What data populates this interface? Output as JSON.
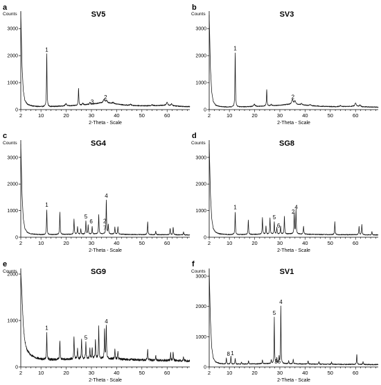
{
  "figure": {
    "panel_count": 6
  },
  "chart_data": [
    {
      "type": "line",
      "letter": "a",
      "title": "SV5",
      "ylabel": "Counts",
      "xlabel": "2-Theta - Scale",
      "xlim": [
        2,
        69
      ],
      "ylim": [
        0,
        3700
      ],
      "x_ticks": [
        2,
        10,
        20,
        30,
        40,
        50,
        60
      ],
      "y_ticks": [
        0,
        1000,
        2000,
        3000
      ],
      "baseline": [
        [
          2,
          3600
        ],
        [
          2.5,
          1600
        ],
        [
          3,
          700
        ],
        [
          3.6,
          350
        ],
        [
          4.5,
          210
        ],
        [
          6,
          150
        ],
        [
          8,
          120
        ],
        [
          10,
          110
        ],
        [
          14,
          110
        ],
        [
          18,
          130
        ],
        [
          22,
          140
        ],
        [
          26,
          170
        ],
        [
          30,
          200
        ],
        [
          33,
          240
        ],
        [
          36,
          260
        ],
        [
          39,
          220
        ],
        [
          43,
          170
        ],
        [
          47,
          150
        ],
        [
          52,
          140
        ],
        [
          56,
          150
        ],
        [
          59,
          160
        ],
        [
          62,
          140
        ],
        [
          66,
          120
        ],
        [
          69,
          110
        ]
      ],
      "peaks": [
        [
          12.3,
          1950,
          0.12
        ],
        [
          19.9,
          80,
          0.35
        ],
        [
          24.9,
          640,
          0.12
        ],
        [
          26.6,
          60,
          0.2
        ],
        [
          29.4,
          70,
          0.2
        ],
        [
          35,
          110,
          0.4
        ],
        [
          36,
          70,
          0.3
        ],
        [
          38.6,
          40,
          0.3
        ],
        [
          45.5,
          40,
          0.3
        ],
        [
          54,
          35,
          0.3
        ],
        [
          60,
          120,
          0.3
        ],
        [
          61.8,
          70,
          0.3
        ]
      ],
      "noise": 18,
      "peak_labels": [
        {
          "text": "1",
          "x": 12.3,
          "y": 2150
        },
        {
          "text": "3",
          "x": 30.3,
          "y": 220
        },
        {
          "text": "2",
          "x": 35.6,
          "y": 380
        }
      ]
    },
    {
      "type": "line",
      "letter": "b",
      "title": "SV3",
      "ylabel": "Counts",
      "xlabel": "2-Theta - Scale",
      "xlim": [
        2,
        69
      ],
      "ylim": [
        0,
        3700
      ],
      "x_ticks": [
        2,
        10,
        20,
        30,
        40,
        50,
        60
      ],
      "y_ticks": [
        0,
        1000,
        2000,
        3000
      ],
      "baseline": [
        [
          2,
          3500
        ],
        [
          2.5,
          1500
        ],
        [
          3,
          650
        ],
        [
          3.6,
          300
        ],
        [
          4.5,
          170
        ],
        [
          6,
          120
        ],
        [
          8,
          100
        ],
        [
          10,
          95
        ],
        [
          14,
          100
        ],
        [
          18,
          110
        ],
        [
          22,
          120
        ],
        [
          26,
          140
        ],
        [
          30,
          160
        ],
        [
          33,
          190
        ],
        [
          36,
          200
        ],
        [
          39,
          170
        ],
        [
          43,
          140
        ],
        [
          47,
          120
        ],
        [
          52,
          110
        ],
        [
          56,
          115
        ],
        [
          59,
          120
        ],
        [
          62,
          105
        ],
        [
          66,
          95
        ],
        [
          69,
          90
        ]
      ],
      "peaks": [
        [
          12.3,
          2000,
          0.12
        ],
        [
          19.9,
          80,
          0.35
        ],
        [
          24.8,
          620,
          0.12
        ],
        [
          26.6,
          60,
          0.2
        ],
        [
          35,
          170,
          0.35
        ],
        [
          36,
          120,
          0.3
        ],
        [
          38.6,
          50,
          0.3
        ],
        [
          42,
          40,
          0.3
        ],
        [
          54,
          35,
          0.3
        ],
        [
          60,
          130,
          0.3
        ],
        [
          61.8,
          70,
          0.3
        ]
      ],
      "noise": 15,
      "peak_labels": [
        {
          "text": "1",
          "x": 12.3,
          "y": 2200
        },
        {
          "text": "2",
          "x": 35.2,
          "y": 400
        }
      ]
    },
    {
      "type": "line",
      "letter": "c",
      "title": "SG4",
      "ylabel": "Counts",
      "xlabel": "2-Theta - Scale",
      "xlim": [
        2,
        69
      ],
      "ylim": [
        0,
        3700
      ],
      "x_ticks": [
        2,
        10,
        20,
        30,
        40,
        50,
        60
      ],
      "y_ticks": [
        0,
        1000,
        2000,
        3000
      ],
      "baseline": [
        [
          2,
          3500
        ],
        [
          2.5,
          1600
        ],
        [
          3,
          700
        ],
        [
          3.6,
          330
        ],
        [
          4.5,
          190
        ],
        [
          6,
          130
        ],
        [
          8,
          110
        ],
        [
          10,
          100
        ],
        [
          14,
          100
        ],
        [
          18,
          105
        ],
        [
          22,
          110
        ],
        [
          26,
          115
        ],
        [
          30,
          120
        ],
        [
          34,
          125
        ],
        [
          38,
          120
        ],
        [
          42,
          110
        ],
        [
          48,
          100
        ],
        [
          54,
          95
        ],
        [
          60,
          95
        ],
        [
          65,
          90
        ],
        [
          69,
          85
        ]
      ],
      "peaks": [
        [
          12.3,
          930,
          0.12
        ],
        [
          17.5,
          830,
          0.12
        ],
        [
          23.1,
          560,
          0.12
        ],
        [
          24.5,
          280,
          0.12
        ],
        [
          25.8,
          190,
          0.12
        ],
        [
          27.8,
          490,
          0.12
        ],
        [
          28.7,
          330,
          0.12
        ],
        [
          30.3,
          280,
          0.12
        ],
        [
          32.9,
          720,
          0.12
        ],
        [
          35.9,
          1280,
          0.12
        ],
        [
          36.7,
          350,
          0.12
        ],
        [
          39.3,
          260,
          0.12
        ],
        [
          40.5,
          280,
          0.12
        ],
        [
          52.3,
          490,
          0.12
        ],
        [
          55.5,
          140,
          0.12
        ],
        [
          61.2,
          240,
          0.12
        ],
        [
          62.4,
          290,
          0.12
        ],
        [
          66.5,
          120,
          0.12
        ]
      ],
      "noise": 15,
      "peak_labels": [
        {
          "text": "1",
          "x": 12.3,
          "y": 1150
        },
        {
          "text": "5",
          "x": 27.8,
          "y": 700
        },
        {
          "text": "6",
          "x": 29.9,
          "y": 520
        },
        {
          "text": "4",
          "x": 35.9,
          "y": 1480
        },
        {
          "text": "2",
          "x": 35.3,
          "y": 530
        },
        {
          "text": "7",
          "x": 35.3,
          "y": 280
        }
      ]
    },
    {
      "type": "line",
      "letter": "d",
      "title": "SG8",
      "ylabel": "Counts",
      "xlabel": "2-Theta - Scale",
      "xlim": [
        2,
        69
      ],
      "ylim": [
        0,
        3700
      ],
      "x_ticks": [
        2,
        10,
        20,
        30,
        40,
        50,
        60
      ],
      "y_ticks": [
        0,
        1000,
        2000,
        3000
      ],
      "baseline": [
        [
          2,
          3500
        ],
        [
          2.5,
          1600
        ],
        [
          3,
          700
        ],
        [
          3.6,
          330
        ],
        [
          4.5,
          190
        ],
        [
          6,
          130
        ],
        [
          8,
          110
        ],
        [
          10,
          100
        ],
        [
          14,
          100
        ],
        [
          18,
          105
        ],
        [
          22,
          110
        ],
        [
          26,
          115
        ],
        [
          30,
          120
        ],
        [
          34,
          125
        ],
        [
          38,
          120
        ],
        [
          42,
          110
        ],
        [
          48,
          100
        ],
        [
          54,
          95
        ],
        [
          60,
          95
        ],
        [
          65,
          90
        ],
        [
          69,
          85
        ]
      ],
      "peaks": [
        [
          12.3,
          850,
          0.12
        ],
        [
          17.5,
          550,
          0.12
        ],
        [
          23.1,
          640,
          0.12
        ],
        [
          24.5,
          300,
          0.12
        ],
        [
          26.1,
          620,
          0.12
        ],
        [
          27.8,
          460,
          0.12
        ],
        [
          28.8,
          250,
          0.12
        ],
        [
          30.3,
          280,
          0.12
        ],
        [
          31.8,
          650,
          0.12
        ],
        [
          35.7,
          780,
          0.12
        ],
        [
          36.4,
          900,
          0.12
        ],
        [
          39.4,
          300,
          0.12
        ],
        [
          51.8,
          480,
          0.12
        ],
        [
          61.4,
          300,
          0.12
        ],
        [
          62.5,
          380,
          0.12
        ],
        [
          66.5,
          120,
          0.12
        ]
      ],
      "noise": 15,
      "peak_labels": [
        {
          "text": "1",
          "x": 12.3,
          "y": 1050
        },
        {
          "text": "5",
          "x": 27.8,
          "y": 680
        },
        {
          "text": "6",
          "x": 29.5,
          "y": 360
        },
        {
          "text": "2",
          "x": 35.3,
          "y": 880
        },
        {
          "text": "4",
          "x": 36.5,
          "y": 1060
        }
      ]
    },
    {
      "type": "line",
      "letter": "e",
      "title": "SG9",
      "ylabel": "Counts",
      "xlabel": "2-Theta - Scale",
      "xlim": [
        2,
        69
      ],
      "ylim": [
        0,
        2150
      ],
      "x_ticks": [
        2,
        10,
        20,
        30,
        40,
        50,
        60
      ],
      "y_ticks": [
        0,
        1000,
        2000
      ],
      "baseline": [
        [
          2,
          2050
        ],
        [
          2.5,
          1500
        ],
        [
          3,
          900
        ],
        [
          3.6,
          550
        ],
        [
          4.5,
          360
        ],
        [
          6,
          250
        ],
        [
          8,
          200
        ],
        [
          10,
          170
        ],
        [
          14,
          160
        ],
        [
          18,
          165
        ],
        [
          22,
          170
        ],
        [
          26,
          175
        ],
        [
          30,
          180
        ],
        [
          34,
          180
        ],
        [
          38,
          175
        ],
        [
          42,
          165
        ],
        [
          48,
          155
        ],
        [
          54,
          145
        ],
        [
          60,
          140
        ],
        [
          65,
          135
        ],
        [
          69,
          130
        ]
      ],
      "peaks": [
        [
          12.3,
          560,
          0.12
        ],
        [
          17.5,
          390,
          0.12
        ],
        [
          23.1,
          490,
          0.12
        ],
        [
          24.5,
          220,
          0.12
        ],
        [
          26.1,
          440,
          0.12
        ],
        [
          27.8,
          370,
          0.12
        ],
        [
          29.4,
          210,
          0.12
        ],
        [
          30.3,
          240,
          0.12
        ],
        [
          31.6,
          420,
          0.12
        ],
        [
          32.9,
          680,
          0.12
        ],
        [
          35.2,
          620,
          0.12
        ],
        [
          35.9,
          720,
          0.12
        ],
        [
          39.3,
          200,
          0.12
        ],
        [
          40.5,
          170,
          0.12
        ],
        [
          52.3,
          240,
          0.12
        ],
        [
          55.5,
          100,
          0.12
        ],
        [
          61.4,
          160,
          0.12
        ],
        [
          62.4,
          200,
          0.12
        ],
        [
          66.5,
          100,
          0.12
        ]
      ],
      "noise": 25,
      "peak_labels": [
        {
          "text": "1",
          "x": 12.3,
          "y": 800
        },
        {
          "text": "5",
          "x": 27.8,
          "y": 590
        },
        {
          "text": "4",
          "x": 35.9,
          "y": 940
        }
      ]
    },
    {
      "type": "line",
      "letter": "f",
      "title": "SV1",
      "ylabel": "Counts",
      "xlabel": "2-Theta - Scale",
      "xlim": [
        2,
        69
      ],
      "ylim": [
        0,
        3300
      ],
      "x_ticks": [
        2,
        10,
        20,
        30,
        40,
        50,
        60
      ],
      "y_ticks": [
        0,
        1000,
        2000,
        3000
      ],
      "baseline": [
        [
          2,
          3200
        ],
        [
          2.5,
          1500
        ],
        [
          3,
          650
        ],
        [
          3.6,
          300
        ],
        [
          4.5,
          170
        ],
        [
          6,
          120
        ],
        [
          8,
          100
        ],
        [
          10,
          95
        ],
        [
          14,
          95
        ],
        [
          18,
          100
        ],
        [
          22,
          105
        ],
        [
          26,
          110
        ],
        [
          30,
          110
        ],
        [
          34,
          105
        ],
        [
          38,
          100
        ],
        [
          42,
          95
        ],
        [
          48,
          90
        ],
        [
          54,
          85
        ],
        [
          60,
          85
        ],
        [
          65,
          80
        ],
        [
          69,
          80
        ]
      ],
      "peaks": [
        [
          8.8,
          200,
          0.12
        ],
        [
          10.6,
          260,
          0.12
        ],
        [
          12.3,
          180,
          0.12
        ],
        [
          14.8,
          70,
          0.12
        ],
        [
          17.6,
          110,
          0.12
        ],
        [
          23.1,
          130,
          0.12
        ],
        [
          26.6,
          130,
          0.12
        ],
        [
          27.8,
          1540,
          0.1
        ],
        [
          28.8,
          180,
          0.12
        ],
        [
          29.7,
          230,
          0.12
        ],
        [
          30.4,
          1900,
          0.1
        ],
        [
          33.5,
          100,
          0.12
        ],
        [
          35.3,
          150,
          0.12
        ],
        [
          41.2,
          110,
          0.12
        ],
        [
          45.5,
          90,
          0.12
        ],
        [
          50.5,
          80,
          0.12
        ],
        [
          60.5,
          330,
          0.12
        ],
        [
          63,
          100,
          0.12
        ]
      ],
      "noise": 15,
      "peak_labels": [
        {
          "text": "8",
          "x": 9.6,
          "y": 370
        },
        {
          "text": "1",
          "x": 11.2,
          "y": 390
        },
        {
          "text": "5",
          "x": 27.8,
          "y": 1720
        },
        {
          "text": "3",
          "x": 28.5,
          "y": 120
        },
        {
          "text": "6",
          "x": 29.7,
          "y": 120
        },
        {
          "text": "4",
          "x": 30.4,
          "y": 2080
        }
      ]
    }
  ]
}
